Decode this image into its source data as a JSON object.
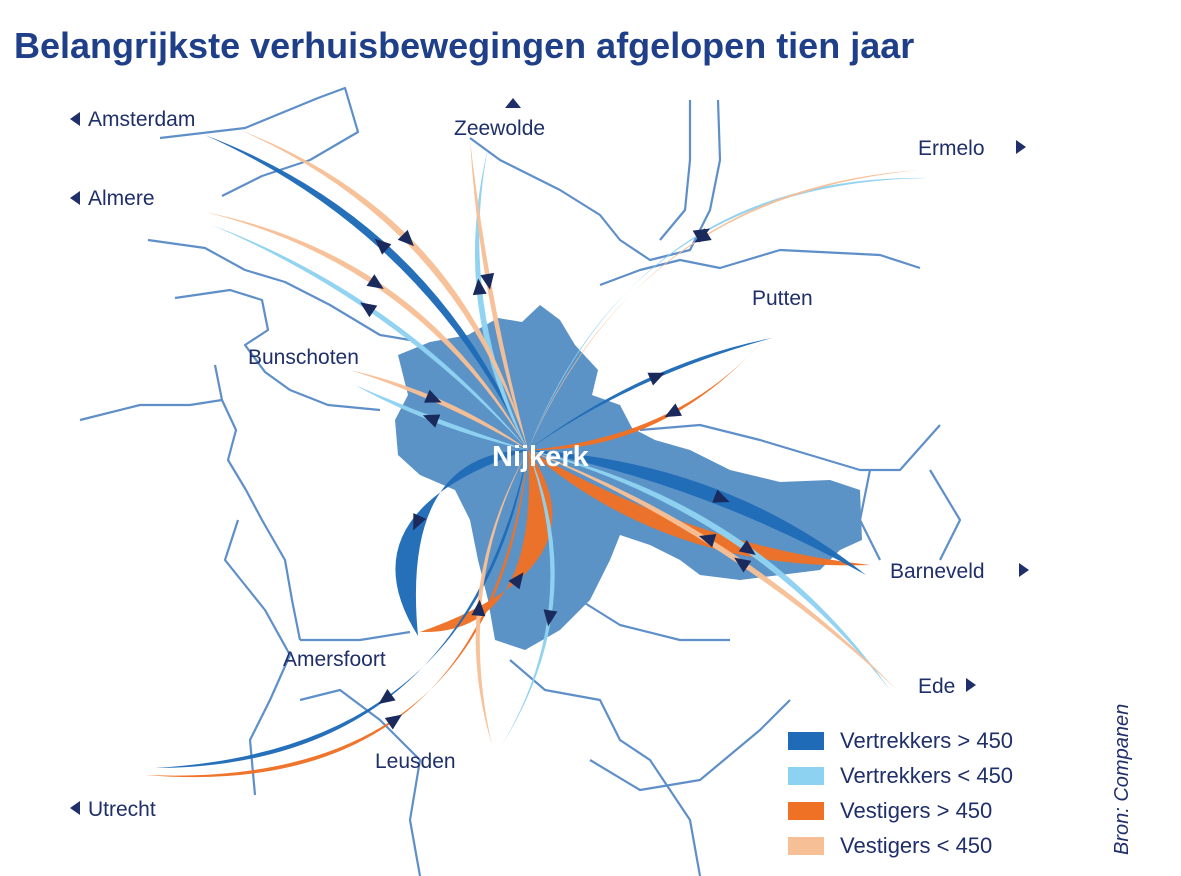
{
  "title": "Belangrijkste verhuisbewegingen afgelopen tien jaar",
  "source": "Bron: Companen",
  "colors": {
    "vertrekkers_groot": "#1f6bb8",
    "vertrekkers_klein": "#8ed2f2",
    "vestigers_groot": "#ef7125",
    "vestigers_klein": "#f7bf96",
    "gemeente": "#5b93c7",
    "grens": "#5f8fc8",
    "pijl": "#1a2a5c"
  },
  "center": {
    "name": "Nijkerk"
  },
  "places": [
    {
      "id": "amsterdam",
      "name": "Amsterdam",
      "marker": "left"
    },
    {
      "id": "almere",
      "name": "Almere",
      "marker": "left"
    },
    {
      "id": "zeewolde",
      "name": "Zeewolde",
      "marker": "up"
    },
    {
      "id": "ermelo",
      "name": "Ermelo",
      "marker": "right"
    },
    {
      "id": "putten",
      "name": "Putten",
      "marker": "none"
    },
    {
      "id": "bunschoten",
      "name": "Bunschoten",
      "marker": "none"
    },
    {
      "id": "barneveld",
      "name": "Barneveld",
      "marker": "right"
    },
    {
      "id": "ede",
      "name": "Ede",
      "marker": "right"
    },
    {
      "id": "amersfoort",
      "name": "Amersfoort",
      "marker": "none"
    },
    {
      "id": "leusden",
      "name": "Leusden",
      "marker": "none"
    },
    {
      "id": "utrecht",
      "name": "Utrecht",
      "marker": "left"
    }
  ],
  "legend": [
    {
      "label": "Vertrekkers > 450",
      "color": "#1f6bb8"
    },
    {
      "label": "Vertrekkers < 450",
      "color": "#8ed2f2"
    },
    {
      "label": "Vestigers > 450",
      "color": "#ef7125"
    },
    {
      "label": "Vestigers < 450",
      "color": "#f7bf96"
    }
  ],
  "flows": [
    {
      "place": "amsterdam",
      "type": "vertrekkers_groot"
    },
    {
      "place": "amsterdam",
      "type": "vestigers_klein"
    },
    {
      "place": "almere",
      "type": "vestigers_klein"
    },
    {
      "place": "almere",
      "type": "vertrekkers_klein"
    },
    {
      "place": "zeewolde",
      "type": "vestigers_klein"
    },
    {
      "place": "zeewolde",
      "type": "vertrekkers_klein"
    },
    {
      "place": "ermelo",
      "type": "vestigers_klein"
    },
    {
      "place": "ermelo",
      "type": "vertrekkers_klein"
    },
    {
      "place": "putten",
      "type": "vestigers_groot"
    },
    {
      "place": "putten",
      "type": "vertrekkers_groot"
    },
    {
      "place": "bunschoten",
      "type": "vestigers_klein"
    },
    {
      "place": "bunschoten",
      "type": "vertrekkers_klein"
    },
    {
      "place": "barneveld",
      "type": "vestigers_groot"
    },
    {
      "place": "barneveld",
      "type": "vertrekkers_groot"
    },
    {
      "place": "ede",
      "type": "vertrekkers_klein"
    },
    {
      "place": "ede",
      "type": "vestigers_klein"
    },
    {
      "place": "amersfoort",
      "type": "vestigers_groot"
    },
    {
      "place": "amersfoort",
      "type": "vertrekkers_groot"
    },
    {
      "place": "leusden",
      "type": "vestigers_klein"
    },
    {
      "place": "leusden",
      "type": "vertrekkers_klein"
    },
    {
      "place": "utrecht",
      "type": "vestigers_groot"
    },
    {
      "place": "utrecht",
      "type": "vertrekkers_groot"
    }
  ]
}
